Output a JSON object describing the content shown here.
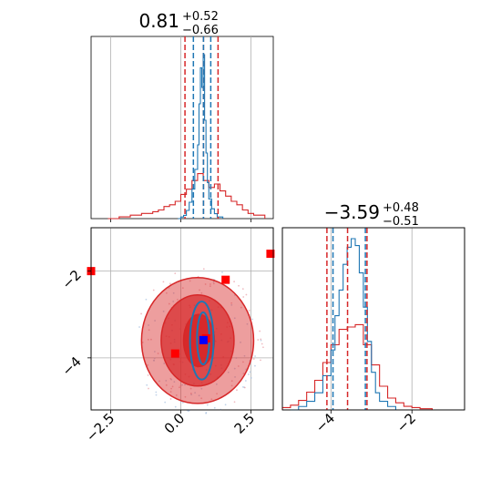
{
  "chart_data": {
    "type": "corner",
    "parameters": 2,
    "colors": {
      "blue": "#1f77b4",
      "red": "#d62728",
      "red_marker": "#ff0000",
      "blue_marker": "#0000ff",
      "grid": "#b0b0b0"
    },
    "panels": [
      {
        "id": "p1-hist",
        "title": {
          "value": "0.81",
          "upper": "+0.52",
          "lower": "−0.66"
        },
        "xlim": [
          -3.2,
          3.3
        ],
        "blue_quantiles": [
          0.45,
          0.81,
          1.07
        ],
        "red_quantiles": [
          0.15,
          0.81,
          1.33
        ],
        "blue_hist": {
          "x": [
            -0.1,
            0.0,
            0.1,
            0.2,
            0.3,
            0.4,
            0.5,
            0.6,
            0.65,
            0.7,
            0.75,
            0.8,
            0.85,
            0.9,
            0.95,
            1.0,
            1.1,
            1.2,
            1.3,
            1.5
          ],
          "y": [
            0.0,
            0.01,
            0.02,
            0.05,
            0.1,
            0.18,
            0.3,
            0.45,
            0.7,
            0.92,
            0.8,
            1.0,
            0.6,
            0.4,
            0.22,
            0.12,
            0.06,
            0.03,
            0.01,
            0.0
          ]
        },
        "red_hist": {
          "x": [
            -2.6,
            -2.2,
            -1.8,
            -1.4,
            -1.0,
            -0.8,
            -0.6,
            -0.4,
            -0.2,
            0.0,
            0.2,
            0.4,
            0.6,
            0.8,
            1.0,
            1.2,
            1.4,
            1.6,
            1.8,
            2.0,
            2.2,
            2.4,
            2.6,
            3.0
          ],
          "y": [
            0.0,
            0.01,
            0.02,
            0.03,
            0.04,
            0.05,
            0.07,
            0.08,
            0.1,
            0.14,
            0.17,
            0.22,
            0.26,
            0.22,
            0.18,
            0.2,
            0.16,
            0.13,
            0.1,
            0.08,
            0.05,
            0.03,
            0.02,
            0.0
          ]
        },
        "x_ticks_shown": false
      },
      {
        "id": "p2-2d",
        "xlim": [
          -3.2,
          3.3
        ],
        "ylim": [
          -5.2,
          -1.0
        ],
        "x_ticks": [
          -2.5,
          0.0,
          2.5
        ],
        "x_tick_labels": [
          "−2.5",
          "0.0",
          "2.5"
        ],
        "y_ticks": [
          -2,
          -4
        ],
        "y_tick_labels": [
          "−2",
          "−4"
        ],
        "red_markers": [
          {
            "x": -3.2,
            "y": -2.0
          },
          {
            "x": 3.2,
            "y": -1.6
          },
          {
            "x": 1.6,
            "y": -2.2
          },
          {
            "x": -0.2,
            "y": -3.9
          },
          {
            "x": 0.9,
            "y": -3.55
          }
        ],
        "blue_marker": {
          "x": 0.81,
          "y": -3.59
        },
        "red_contours": [
          {
            "cx": 0.6,
            "cy": -3.6,
            "rx": 2.0,
            "ry": 1.45,
            "level": "outer"
          },
          {
            "cx": 0.6,
            "cy": -3.6,
            "rx": 1.3,
            "ry": 1.05,
            "level": "middle"
          },
          {
            "cx": 0.65,
            "cy": -3.6,
            "rx": 0.55,
            "ry": 0.6,
            "level": "inner"
          }
        ],
        "blue_contours": [
          {
            "cx": 0.75,
            "cy": -3.6,
            "rx": 0.42,
            "ry": 0.9
          },
          {
            "cx": 0.8,
            "cy": -3.55,
            "rx": 0.22,
            "ry": 0.6
          }
        ]
      },
      {
        "id": "p3-hist",
        "title": {
          "value": "−3.59",
          "upper": "+0.48",
          "lower": "−0.51"
        },
        "xlim": [
          -5.2,
          -0.7
        ],
        "x_ticks": [
          -4,
          -2
        ],
        "x_tick_labels": [
          "−4",
          "−2"
        ],
        "blue_quantiles": [
          -3.95,
          -3.15
        ],
        "red_quantiles": [
          -4.1,
          -3.59,
          -3.11
        ],
        "blue_hist": {
          "x": [
            -5.0,
            -4.8,
            -4.6,
            -4.4,
            -4.2,
            -4.0,
            -3.9,
            -3.8,
            -3.7,
            -3.6,
            -3.5,
            -3.4,
            -3.3,
            -3.2,
            -3.1,
            -3.0,
            -2.9,
            -2.8,
            -2.6,
            -2.4
          ],
          "y": [
            0.0,
            0.02,
            0.05,
            0.1,
            0.2,
            0.35,
            0.55,
            0.7,
            0.85,
            0.95,
            1.0,
            0.96,
            0.8,
            0.6,
            0.4,
            0.22,
            0.1,
            0.05,
            0.02,
            0.0
          ]
        },
        "red_hist": {
          "x": [
            -5.2,
            -5.0,
            -4.8,
            -4.6,
            -4.4,
            -4.2,
            -4.0,
            -3.8,
            -3.6,
            -3.4,
            -3.2,
            -3.0,
            -2.8,
            -2.6,
            -2.4,
            -2.2,
            -2.0,
            -1.8,
            -1.5
          ],
          "y": [
            0.02,
            0.04,
            0.08,
            0.15,
            0.25,
            0.4,
            0.55,
            0.68,
            0.7,
            0.72,
            0.55,
            0.38,
            0.2,
            0.1,
            0.06,
            0.03,
            0.02,
            0.01,
            0.0
          ]
        }
      }
    ]
  }
}
